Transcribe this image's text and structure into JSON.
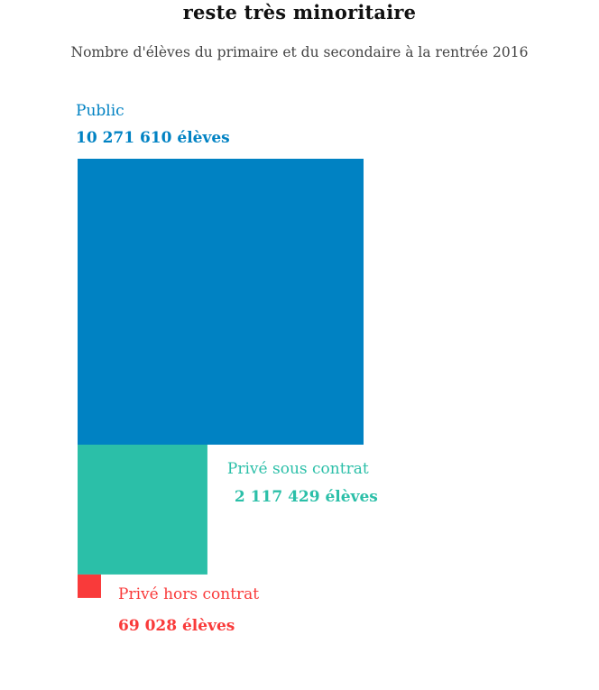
{
  "chart_data": {
    "type": "proportional-squares",
    "title": "reste très minoritaire",
    "subtitle": "Nombre d'élèves du primaire et du secondaire à la rentrée 2016",
    "unit": "élèves",
    "items": [
      {
        "name": "Public",
        "value": 10271610,
        "value_label": "10 271 610 élèves",
        "color": "#0082C3"
      },
      {
        "name": "Privé sous contrat",
        "value": 2117429,
        "value_label": "2 117 429 élèves",
        "color": "#2BBFA8"
      },
      {
        "name": "Privé hors contrat",
        "value": 69028,
        "value_label": "69 028 élèves",
        "color": "#F93A3A"
      }
    ]
  }
}
